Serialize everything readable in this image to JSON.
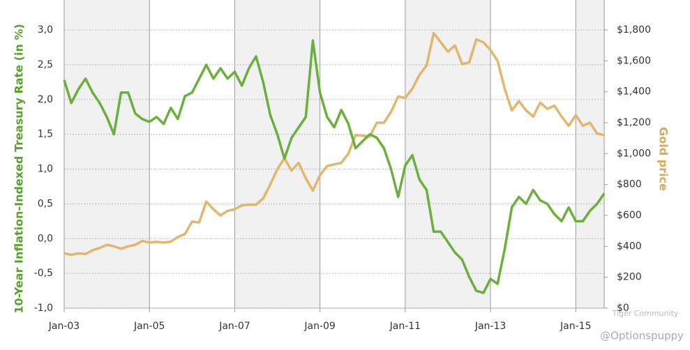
{
  "chart_data": {
    "type": "line",
    "categories": [
      "Jan-03",
      null,
      null,
      null,
      null,
      null,
      null,
      null,
      null,
      null,
      null,
      null,
      "Jan-05",
      null,
      null,
      null,
      null,
      null,
      null,
      null,
      null,
      null,
      null,
      null,
      "Jan-07",
      null,
      null,
      null,
      null,
      null,
      null,
      null,
      null,
      null,
      null,
      null,
      "Jan-09",
      null,
      null,
      null,
      null,
      null,
      null,
      null,
      null,
      null,
      null,
      null,
      "Jan-11",
      null,
      null,
      null,
      null,
      null,
      null,
      null,
      null,
      null,
      null,
      null,
      "Jan-13",
      null,
      null,
      null,
      null,
      null,
      null,
      null,
      null,
      null,
      null,
      null,
      "Jan-15",
      null,
      null,
      null,
      null
    ],
    "ylabel": "10-Year Inflation-Indexed Treasury Rate (in %)",
    "y2label": "Gold price",
    "ylim": [
      -1,
      3
    ],
    "yticks": [
      {
        "value": -1,
        "label": "-1,0"
      },
      {
        "value": -0.5,
        "label": "-0,5"
      },
      {
        "value": 0,
        "label": "0,0"
      },
      {
        "value": 0.5,
        "label": "0,5"
      },
      {
        "value": 1,
        "label": "1,0"
      },
      {
        "value": 1.5,
        "label": "1,5"
      },
      {
        "value": 2,
        "label": "2,0"
      },
      {
        "value": 2.5,
        "label": "2,5"
      },
      {
        "value": 3,
        "label": "3,0"
      }
    ],
    "y2lim": [
      0,
      1800
    ],
    "y2ticks": [
      {
        "value": 0,
        "label": "$0"
      },
      {
        "value": 200,
        "label": "$200"
      },
      {
        "value": 400,
        "label": "$400"
      },
      {
        "value": 600,
        "label": "$600"
      },
      {
        "value": 800,
        "label": "$800"
      },
      {
        "value": 1000,
        "label": "$1,000"
      },
      {
        "value": 1200,
        "label": "$1,200"
      },
      {
        "value": 1400,
        "label": "$1,400"
      },
      {
        "value": 1600,
        "label": "$1,600"
      },
      {
        "value": 1800,
        "label": "$1,800"
      }
    ],
    "grid": true,
    "series": [
      {
        "color": "#6ab03a",
        "values": [
          2.28,
          1.95,
          2.15,
          2.3,
          2.1,
          1.95,
          1.75,
          1.5,
          2.1,
          2.1,
          1.8,
          1.72,
          1.68,
          1.75,
          1.65,
          1.88,
          1.72,
          2.05,
          2.1,
          2.3,
          2.5,
          2.3,
          2.45,
          2.3,
          2.4,
          2.2,
          2.45,
          2.62,
          2.25,
          1.78,
          1.5,
          1.15,
          1.45,
          1.6,
          1.75,
          2.85,
          2.1,
          1.75,
          1.6,
          1.85,
          1.65,
          1.3,
          1.4,
          1.5,
          1.45,
          1.3,
          1.0,
          0.6,
          1.05,
          1.2,
          0.85,
          0.7,
          0.1,
          0.1,
          -0.05,
          -0.2,
          -0.3,
          -0.55,
          -0.75,
          -0.78,
          -0.58,
          -0.65,
          -0.15,
          0.45,
          0.6,
          0.5,
          0.7,
          0.55,
          0.5,
          0.35,
          0.25,
          0.45,
          0.25,
          0.25,
          0.4,
          0.5,
          0.65
        ]
      },
      {
        "color": "#e2b66c",
        "axis": "y2",
        "values": [
          355,
          345,
          355,
          350,
          375,
          390,
          410,
          400,
          385,
          400,
          410,
          435,
          425,
          430,
          425,
          430,
          460,
          480,
          560,
          555,
          690,
          640,
          600,
          630,
          640,
          665,
          670,
          670,
          710,
          800,
          900,
          970,
          890,
          940,
          840,
          760,
          860,
          920,
          930,
          940,
          1000,
          1120,
          1115,
          1110,
          1200,
          1200,
          1270,
          1370,
          1360,
          1420,
          1510,
          1570,
          1780,
          1720,
          1660,
          1700,
          1580,
          1590,
          1740,
          1720,
          1670,
          1600,
          1420,
          1280,
          1340,
          1280,
          1240,
          1330,
          1290,
          1310,
          1240,
          1180,
          1250,
          1180,
          1200,
          1130,
          1120
        ]
      }
    ],
    "annotations": [
      "Tiger Community",
      "@Optionspuppy"
    ]
  }
}
